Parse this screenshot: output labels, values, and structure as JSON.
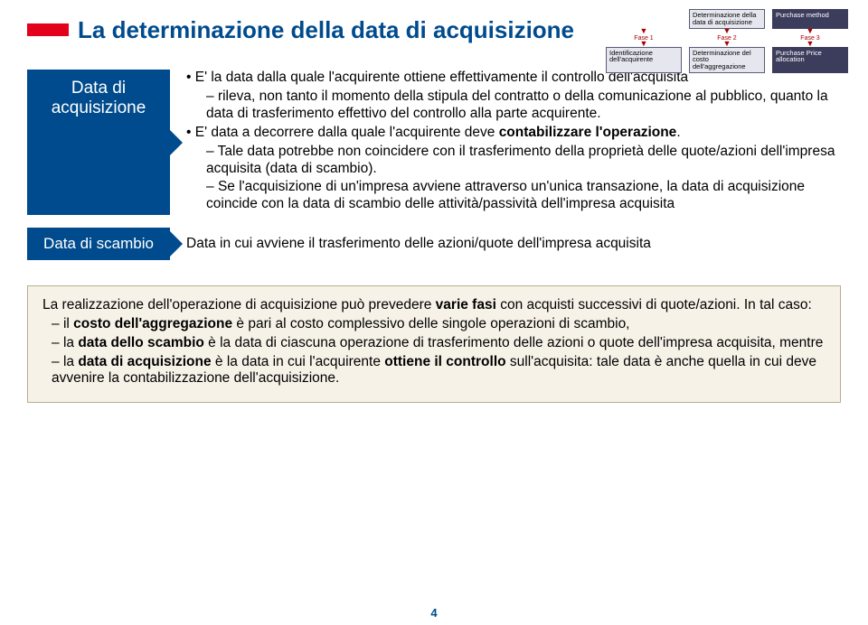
{
  "title": "La determinazione della data di acquisizione",
  "accent_color": "#e2001a",
  "heading_color": "#004b8d",
  "diagram": {
    "top": [
      {
        "text": "Determinazione della data di acquisizione",
        "dark": false
      },
      {
        "text": "Purchase method",
        "dark": true
      }
    ],
    "phases": [
      "Fase 1",
      "Fase 2",
      "Fase 3"
    ],
    "bottom": [
      {
        "text": "Identificazione dell'acquirente",
        "dark": false
      },
      {
        "text": "Determinazione del costo dell'aggregazione",
        "dark": false
      },
      {
        "text": "Purchase Price allocation",
        "dark": true
      }
    ]
  },
  "box1_label": "Data di acquisizione",
  "section1": {
    "b1": "E' la data dalla quale l'acquirente ottiene effettivamente il controllo dell'acquisita",
    "d1a": "rileva, non tanto il momento della stipula del contratto o della comunicazione al pubblico, quanto la data di trasferimento effettivo del controllo alla parte acquirente.",
    "b2_pre": "E' data a decorrere dalla quale l'acquirente deve ",
    "b2_bold": "contabilizzare l'operazione",
    "b2_post": ".",
    "d2": "Tale data potrebbe non coincidere con il trasferimento della proprietà delle quote/azioni dell'impresa acquisita (data di scambio).",
    "d3": "Se l'acquisizione di un'impresa avviene attraverso un'unica transazione, la data di acquisizione coincide con la data di scambio delle attività/passività dell'impresa acquisita"
  },
  "box2_label": "Data di scambio",
  "section2": "Data in cui avviene il trasferimento delle azioni/quote dell'impresa acquisita",
  "bottom": {
    "intro_pre": "La realizzazione dell'operazione di acquisizione può prevedere ",
    "intro_bold": "varie fasi",
    "intro_post": " con acquisti successivi di quote/azioni. In tal caso:",
    "i1_pre": "il ",
    "i1_b": "costo dell'aggregazione",
    "i1_post": " è pari al costo complessivo delle singole operazioni di scambio,",
    "i2_pre": "la ",
    "i2_b": "data dello scambio",
    "i2_post": " è la data di ciascuna operazione di trasferimento delle azioni o quote dell'impresa acquisita, mentre",
    "i3_pre": "la ",
    "i3_b": "data di acquisizione",
    "i3_mid": " è la data in cui l'acquirente ",
    "i3_b2": "ottiene il controllo",
    "i3_post": " sull'acquisita: tale data è anche quella  in cui deve avvenire la contabilizzazione dell'acquisizione."
  },
  "page_number": "4"
}
